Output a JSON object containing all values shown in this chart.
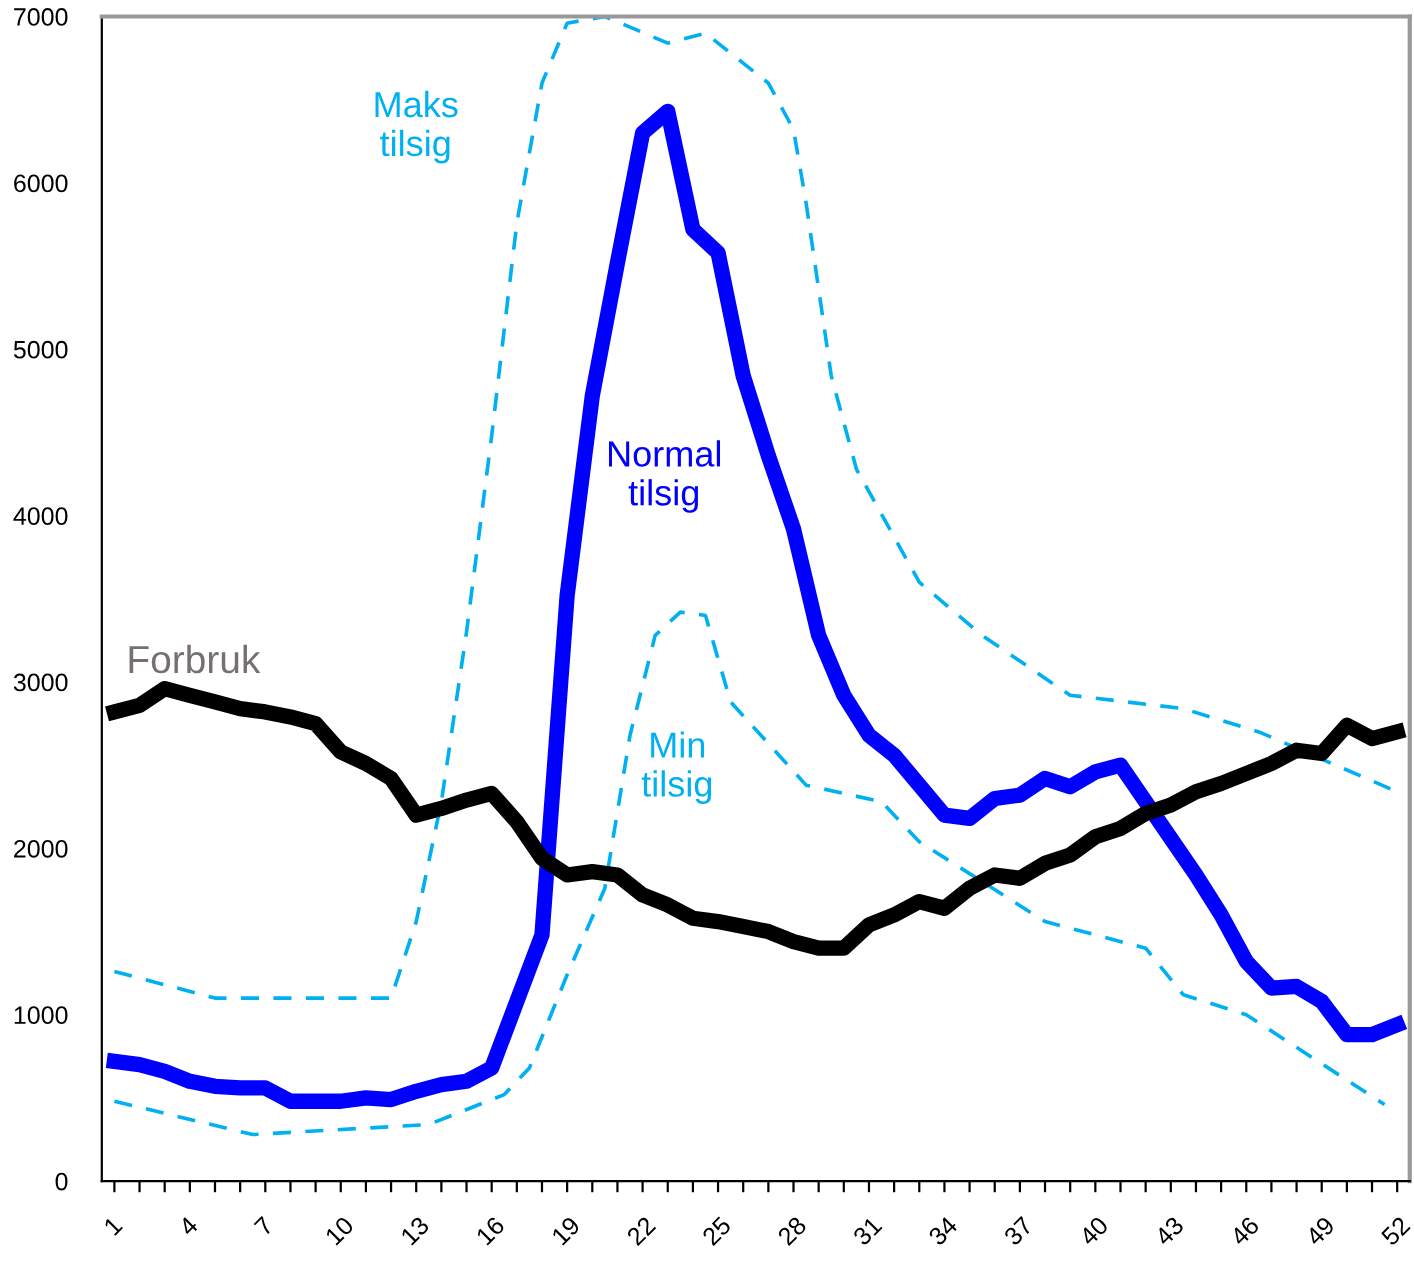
{
  "chart_data": {
    "type": "line",
    "xlim": [
      0.5,
      52.5
    ],
    "ylim": [
      0,
      7000
    ],
    "yticks": [
      0,
      1000,
      2000,
      3000,
      4000,
      5000,
      6000,
      7000
    ],
    "xticks": [
      1,
      {
        "value": 2,
        "label": null
      },
      {
        "value": 3,
        "label": null
      },
      4,
      {
        "value": 5,
        "label": null
      },
      {
        "value": 6,
        "label": null
      },
      7,
      {
        "value": 8,
        "label": null
      },
      {
        "value": 9,
        "label": null
      },
      10,
      {
        "value": 11,
        "label": null
      },
      {
        "value": 12,
        "label": null
      },
      13,
      {
        "value": 14,
        "label": null
      },
      {
        "value": 15,
        "label": null
      },
      16,
      {
        "value": 17,
        "label": null
      },
      {
        "value": 18,
        "label": null
      },
      19,
      {
        "value": 20,
        "label": null
      },
      {
        "value": 21,
        "label": null
      },
      22,
      {
        "value": 23,
        "label": null
      },
      {
        "value": 24,
        "label": null
      },
      25,
      {
        "value": 26,
        "label": null
      },
      {
        "value": 27,
        "label": null
      },
      28,
      {
        "value": 29,
        "label": null
      },
      {
        "value": 30,
        "label": null
      },
      31,
      {
        "value": 32,
        "label": null
      },
      {
        "value": 33,
        "label": null
      },
      34,
      {
        "value": 35,
        "label": null
      },
      {
        "value": 36,
        "label": null
      },
      37,
      {
        "value": 38,
        "label": null
      },
      {
        "value": 39,
        "label": null
      },
      40,
      {
        "value": 41,
        "label": null
      },
      {
        "value": 42,
        "label": null
      },
      43,
      {
        "value": 44,
        "label": null
      },
      {
        "value": 45,
        "label": null
      },
      46,
      {
        "value": 47,
        "label": null
      },
      {
        "value": 48,
        "label": null
      },
      49,
      {
        "value": 50,
        "label": null
      },
      {
        "value": 51,
        "label": null
      },
      52
    ],
    "grid": false,
    "legend": false,
    "marker": "none",
    "series": [
      {
        "name": "Maks tilsig",
        "color": "#00b0f0",
        "line_style": "dashed",
        "x": [
          1,
          5,
          12,
          13,
          14,
          15,
          16,
          17,
          18,
          19,
          20.5,
          23,
          24.5,
          27,
          28,
          28.5,
          29.5,
          30.5,
          33,
          35.5,
          39,
          43.5,
          46.5,
          52
        ],
        "values": [
          1260,
          1100,
          1100,
          1560,
          2280,
          3300,
          4480,
          5760,
          6600,
          6960,
          7000,
          6840,
          6900,
          6600,
          6320,
          5880,
          4840,
          4280,
          3600,
          3280,
          2920,
          2840,
          2700,
          2340
        ]
      },
      {
        "name": "Normal tilsig",
        "color": "#0000ff",
        "line_style": "solid",
        "x": [
          1,
          2,
          3,
          4,
          5,
          6,
          7,
          8,
          9,
          10,
          11,
          12,
          13,
          14,
          15,
          16,
          17,
          18,
          19,
          20,
          21,
          22,
          23,
          24,
          25,
          26,
          27,
          28,
          29,
          30,
          31,
          32,
          33,
          34,
          35,
          36,
          37,
          38,
          39,
          40,
          41,
          42,
          43,
          44,
          45,
          46,
          47,
          48,
          49,
          50,
          51,
          52
        ],
        "values": [
          720,
          700,
          660,
          600,
          570,
          560,
          560,
          480,
          480,
          480,
          500,
          490,
          540,
          580,
          600,
          680,
          1080,
          1480,
          3520,
          4720,
          5520,
          6300,
          6430,
          5720,
          5580,
          4840,
          4360,
          3920,
          3280,
          2920,
          2680,
          2560,
          2380,
          2200,
          2180,
          2300,
          2320,
          2420,
          2370,
          2460,
          2500,
          2280,
          2060,
          1840,
          1600,
          1320,
          1160,
          1170,
          1080,
          880,
          880,
          940
        ]
      },
      {
        "name": "Min tilsig",
        "color": "#00b0f0",
        "line_style": "dashed",
        "x": [
          1,
          6.5,
          13.5,
          16.5,
          17.5,
          19,
          20.5,
          21.5,
          22.5,
          23.5,
          24.5,
          25.5,
          28.5,
          31.5,
          33,
          38,
          42,
          43.5,
          46,
          51.5
        ],
        "values": [
          480,
          280,
          340,
          520,
          680,
          1240,
          1760,
          2680,
          3280,
          3420,
          3400,
          2880,
          2380,
          2280,
          2040,
          1560,
          1400,
          1120,
          1000,
          460
        ]
      },
      {
        "name": "Forbruk",
        "color": "#000000",
        "line_style": "solid",
        "x": [
          1,
          2,
          3,
          4,
          5,
          6,
          7,
          8,
          9,
          10,
          11,
          12,
          13,
          14,
          15,
          16,
          17,
          18,
          19,
          20,
          21,
          22,
          23,
          24,
          25,
          26,
          27,
          28,
          29,
          30,
          31,
          32,
          33,
          34,
          35,
          36,
          37,
          38,
          39,
          40,
          41,
          42,
          43,
          44,
          45,
          46,
          47,
          48,
          49,
          50,
          51,
          52
        ],
        "values": [
          2820,
          2860,
          2960,
          2920,
          2880,
          2840,
          2820,
          2790,
          2750,
          2580,
          2510,
          2420,
          2200,
          2240,
          2290,
          2330,
          2160,
          1940,
          1840,
          1860,
          1840,
          1720,
          1660,
          1580,
          1560,
          1530,
          1500,
          1440,
          1400,
          1400,
          1540,
          1600,
          1680,
          1640,
          1760,
          1840,
          1820,
          1910,
          1960,
          2070,
          2120,
          2210,
          2260,
          2340,
          2390,
          2450,
          2510,
          2590,
          2570,
          2740,
          2660,
          2700
        ]
      }
    ]
  }
}
